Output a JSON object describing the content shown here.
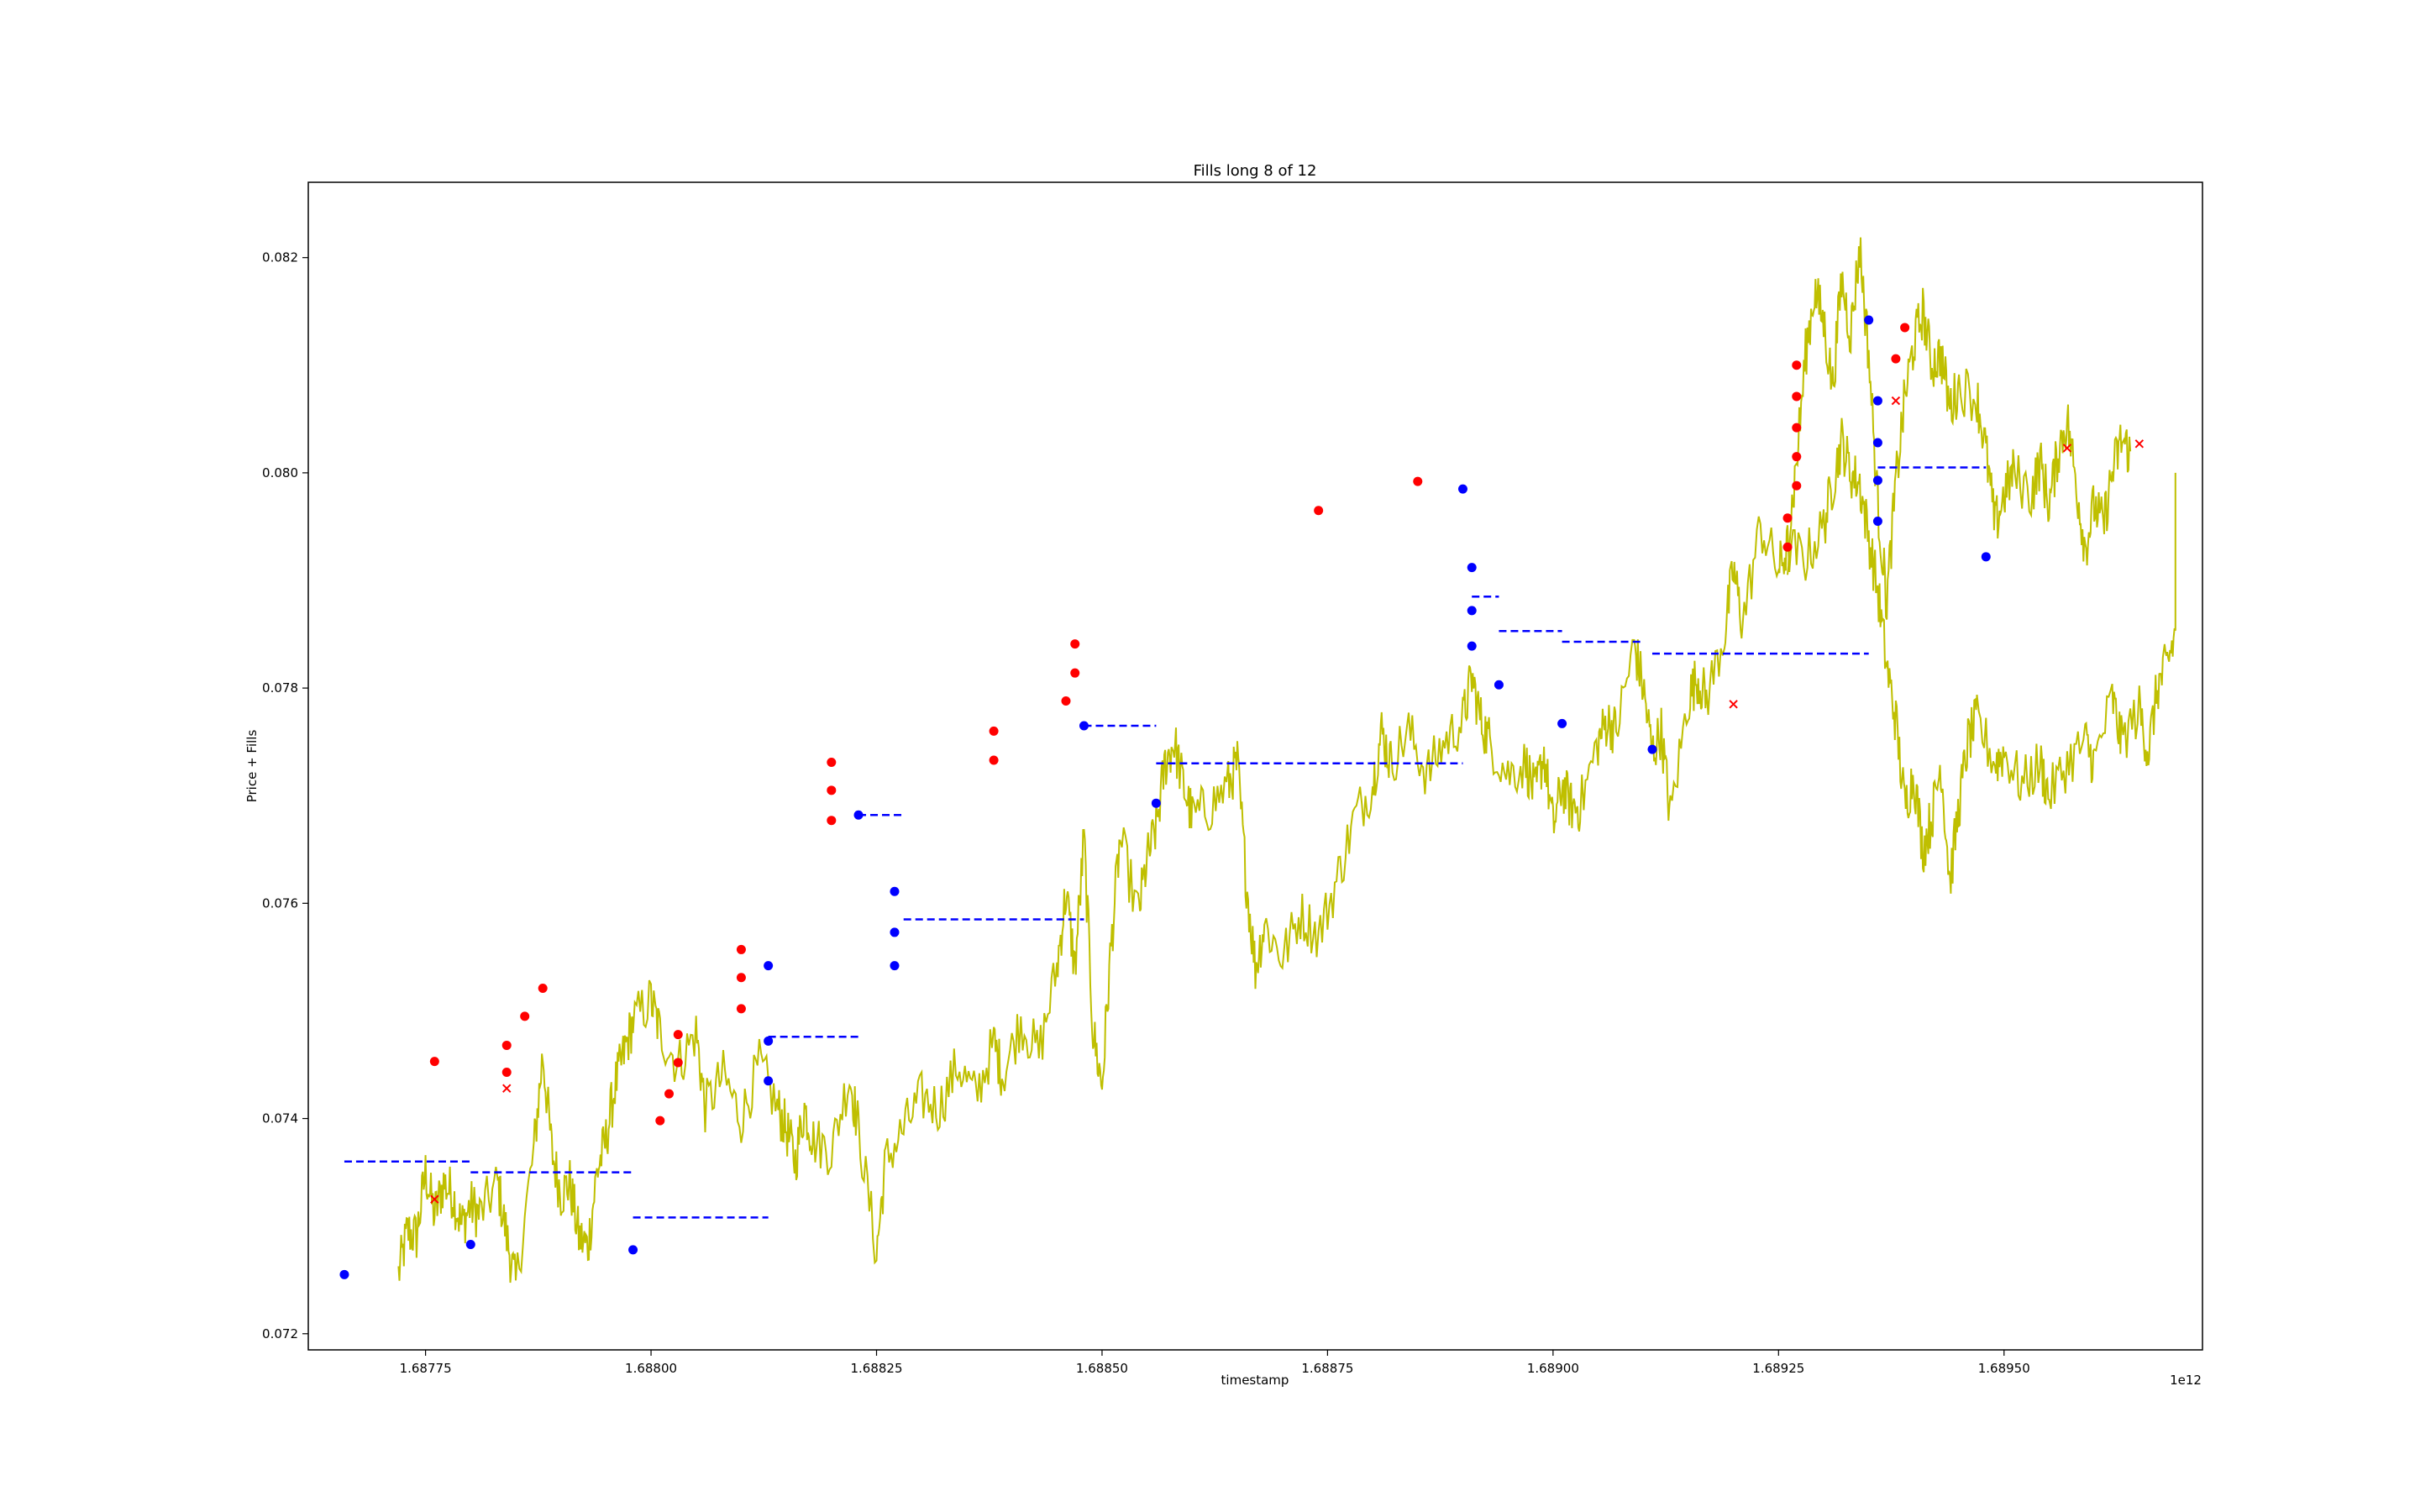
{
  "chart_data": {
    "type": "line",
    "title": "Fills long 8 of 12",
    "xlabel": "timestamp",
    "ylabel": "Price + Fills",
    "x_offset_label": "1e12",
    "xlim": [
      1.68762,
      1.68972
    ],
    "ylim": [
      0.07185,
      0.0827
    ],
    "x_ticks": [
      1.68775,
      1.688,
      1.68825,
      1.6885,
      1.68875,
      1.689,
      1.68925,
      1.6895
    ],
    "x_tick_labels": [
      "1.68775",
      "1.68800",
      "1.68825",
      "1.68850",
      "1.68875",
      "1.68900",
      "1.68925",
      "1.68950"
    ],
    "y_ticks": [
      0.072,
      0.074,
      0.076,
      0.078,
      0.08,
      0.082
    ],
    "y_tick_labels": [
      "0.072",
      "0.074",
      "0.076",
      "0.078",
      "0.080",
      "0.082"
    ],
    "grid": false,
    "legend": "none",
    "colors": {
      "price": "#bfbf00",
      "entry_fill": "#0000ff",
      "close_fill": "#ff0000",
      "position_price": "#0000ff",
      "stop_marker": "#ff0000",
      "mixed_fill": "#800080"
    },
    "price_series": {
      "name": "price",
      "points": [
        [
          1.68772,
          0.07255
        ],
        [
          1.68773,
          0.07295
        ],
        [
          1.68774,
          0.0729
        ],
        [
          1.68775,
          0.0735
        ],
        [
          1.68776,
          0.0731
        ],
        [
          1.68777,
          0.0734
        ],
        [
          1.68778,
          0.0733
        ],
        [
          1.68779,
          0.073
        ],
        [
          1.6878,
          0.0732
        ],
        [
          1.68781,
          0.0731
        ],
        [
          1.68783,
          0.0734
        ],
        [
          1.68784,
          0.0729
        ],
        [
          1.68785,
          0.07245
        ],
        [
          1.68787,
          0.0737
        ],
        [
          1.68788,
          0.0746
        ],
        [
          1.68789,
          0.0737
        ],
        [
          1.6879,
          0.0733
        ],
        [
          1.68791,
          0.0734
        ],
        [
          1.68792,
          0.0729
        ],
        [
          1.68793,
          0.0728
        ],
        [
          1.68794,
          0.0735
        ],
        [
          1.68795,
          0.0738
        ],
        [
          1.68796,
          0.0743
        ],
        [
          1.68797,
          0.0746
        ],
        [
          1.68798,
          0.0749
        ],
        [
          1.688,
          0.0751
        ],
        [
          1.68801,
          0.0748
        ],
        [
          1.68803,
          0.0745
        ],
        [
          1.68805,
          0.0748
        ],
        [
          1.68806,
          0.0741
        ],
        [
          1.68808,
          0.0744
        ],
        [
          1.6881,
          0.074
        ],
        [
          1.68812,
          0.0745
        ],
        [
          1.68814,
          0.0741
        ],
        [
          1.68815,
          0.0739
        ],
        [
          1.68816,
          0.0736
        ],
        [
          1.68817,
          0.0741
        ],
        [
          1.68818,
          0.0738
        ],
        [
          1.6882,
          0.0737
        ],
        [
          1.68822,
          0.0744
        ],
        [
          1.68823,
          0.0739
        ],
        [
          1.68825,
          0.07275
        ],
        [
          1.68826,
          0.0736
        ],
        [
          1.68828,
          0.0739
        ],
        [
          1.6883,
          0.0742
        ],
        [
          1.68832,
          0.0741
        ],
        [
          1.68834,
          0.0745
        ],
        [
          1.68836,
          0.0742
        ],
        [
          1.68838,
          0.0747
        ],
        [
          1.68839,
          0.0744
        ],
        [
          1.68841,
          0.0749
        ],
        [
          1.68843,
          0.0746
        ],
        [
          1.68845,
          0.0754
        ],
        [
          1.68846,
          0.0761
        ],
        [
          1.68847,
          0.0754
        ],
        [
          1.68848,
          0.0766
        ],
        [
          1.68849,
          0.0748
        ],
        [
          1.6885,
          0.0743
        ],
        [
          1.68851,
          0.0756
        ],
        [
          1.68852,
          0.0766
        ],
        [
          1.68854,
          0.0759
        ],
        [
          1.68855,
          0.0764
        ],
        [
          1.68856,
          0.0767
        ],
        [
          1.68857,
          0.0773
        ],
        [
          1.68858,
          0.0775
        ],
        [
          1.68859,
          0.0771
        ],
        [
          1.6886,
          0.0768
        ],
        [
          1.68862,
          0.0769
        ],
        [
          1.68864,
          0.0771
        ],
        [
          1.68865,
          0.0773
        ],
        [
          1.68866,
          0.0762
        ],
        [
          1.68867,
          0.0754
        ],
        [
          1.68868,
          0.0758
        ],
        [
          1.6887,
          0.0755
        ],
        [
          1.68872,
          0.0759
        ],
        [
          1.68874,
          0.0757
        ],
        [
          1.68876,
          0.0762
        ],
        [
          1.68878,
          0.0768
        ],
        [
          1.6888,
          0.0771
        ],
        [
          1.68881,
          0.0776
        ],
        [
          1.68882,
          0.0773
        ],
        [
          1.68884,
          0.0776
        ],
        [
          1.68886,
          0.0772
        ],
        [
          1.68888,
          0.0775
        ],
        [
          1.6889,
          0.0777
        ],
        [
          1.68891,
          0.0781
        ],
        [
          1.68892,
          0.0777
        ],
        [
          1.68893,
          0.0775
        ],
        [
          1.68895,
          0.0772
        ],
        [
          1.68897,
          0.0773
        ],
        [
          1.68898,
          0.077
        ],
        [
          1.68899,
          0.0774
        ],
        [
          1.689,
          0.0767
        ],
        [
          1.68901,
          0.0771
        ],
        [
          1.68902,
          0.0769
        ],
        [
          1.68903,
          0.0769
        ],
        [
          1.68905,
          0.0775
        ],
        [
          1.68906,
          0.0777
        ],
        [
          1.68907,
          0.0776
        ],
        [
          1.68909,
          0.0784
        ],
        [
          1.6891,
          0.078
        ],
        [
          1.68911,
          0.0774
        ],
        [
          1.68912,
          0.0776
        ],
        [
          1.68913,
          0.0768
        ],
        [
          1.68915,
          0.0779
        ],
        [
          1.68916,
          0.0781
        ],
        [
          1.68917,
          0.0779
        ],
        [
          1.68919,
          0.0785
        ],
        [
          1.6892,
          0.0791
        ],
        [
          1.68921,
          0.0786
        ],
        [
          1.68923,
          0.0795
        ],
        [
          1.68925,
          0.0791
        ],
        [
          1.68926,
          0.0793
        ],
        [
          1.68928,
          0.0792
        ],
        [
          1.6893,
          0.0795
        ],
        [
          1.68931,
          0.0799
        ],
        [
          1.68932,
          0.0803
        ],
        [
          1.68933,
          0.08
        ],
        [
          1.68934,
          0.0799
        ],
        [
          1.68935,
          0.0794
        ],
        [
          1.68936,
          0.0789
        ],
        [
          1.68937,
          0.0782
        ],
        [
          1.68938,
          0.0777
        ],
        [
          1.68939,
          0.0769
        ],
        [
          1.6894,
          0.0772
        ],
        [
          1.68941,
          0.0765
        ],
        [
          1.68942,
          0.0768
        ],
        [
          1.68943,
          0.0773
        ],
        [
          1.68944,
          0.0762
        ],
        [
          1.68945,
          0.0769
        ],
        [
          1.68946,
          0.0775
        ],
        [
          1.68947,
          0.0777
        ],
        [
          1.68949,
          0.0773
        ],
        [
          1.6895,
          0.0774
        ],
        [
          1.68952,
          0.0771
        ],
        [
          1.68954,
          0.0773
        ],
        [
          1.68955,
          0.077
        ],
        [
          1.68957,
          0.0773
        ],
        [
          1.68959,
          0.0775
        ],
        [
          1.6896,
          0.0773
        ],
        [
          1.68962,
          0.0779
        ],
        [
          1.68963,
          0.0775
        ],
        [
          1.68965,
          0.0778
        ],
        [
          1.68966,
          0.0774
        ],
        [
          1.68967,
          0.078
        ],
        [
          1.68968,
          0.0782
        ],
        [
          1.68969,
          0.0785
        ],
        [
          1.68969,
          0.08
        ]
      ]
    },
    "price_series_late": {
      "name": "price",
      "points": [
        [
          1.68926,
          0.0793
        ],
        [
          1.68927,
          0.0801
        ],
        [
          1.68928,
          0.0811
        ],
        [
          1.68929,
          0.0817
        ],
        [
          1.6893,
          0.0814
        ],
        [
          1.68931,
          0.0808
        ],
        [
          1.68932,
          0.0818
        ],
        [
          1.68933,
          0.0813
        ],
        [
          1.68934,
          0.0821
        ],
        [
          1.68935,
          0.0811
        ],
        [
          1.68936,
          0.0797
        ],
        [
          1.68937,
          0.0788
        ],
        [
          1.68938,
          0.0799
        ],
        [
          1.68939,
          0.0807
        ],
        [
          1.6894,
          0.0812
        ],
        [
          1.68941,
          0.0815
        ],
        [
          1.68942,
          0.081
        ],
        [
          1.68943,
          0.0811
        ],
        [
          1.68944,
          0.0806
        ],
        [
          1.68945,
          0.0808
        ],
        [
          1.68947,
          0.0807
        ],
        [
          1.68948,
          0.0802
        ],
        [
          1.68949,
          0.0795
        ],
        [
          1.6895,
          0.0798
        ],
        [
          1.68951,
          0.08
        ],
        [
          1.68953,
          0.0798
        ],
        [
          1.68954,
          0.0801
        ],
        [
          1.68955,
          0.0797
        ],
        [
          1.68956,
          0.0802
        ],
        [
          1.68957,
          0.0805
        ],
        [
          1.68958,
          0.0799
        ],
        [
          1.68959,
          0.0793
        ],
        [
          1.6896,
          0.0797
        ],
        [
          1.68961,
          0.0795
        ],
        [
          1.68962,
          0.08
        ],
        [
          1.68963,
          0.0803
        ],
        [
          1.68964,
          0.0802
        ]
      ]
    },
    "entry_fills": [
      [
        1.68766,
        0.07255
      ],
      [
        1.6878,
        0.07283
      ],
      [
        1.68798,
        0.07278
      ],
      [
        1.68813,
        0.07435
      ],
      [
        1.68813,
        0.07472
      ],
      [
        1.68813,
        0.07542
      ],
      [
        1.68823,
        0.07682
      ],
      [
        1.68827,
        0.07542
      ],
      [
        1.68827,
        0.07573
      ],
      [
        1.68827,
        0.07611
      ],
      [
        1.68848,
        0.07765
      ],
      [
        1.68856,
        0.07693
      ],
      [
        1.6889,
        0.07985
      ],
      [
        1.68891,
        0.07912
      ],
      [
        1.68891,
        0.07872
      ],
      [
        1.68891,
        0.07839
      ],
      [
        1.68894,
        0.07803
      ],
      [
        1.68901,
        0.07767
      ],
      [
        1.68911,
        0.07743
      ],
      [
        1.68935,
        0.08142
      ],
      [
        1.68936,
        0.08067
      ],
      [
        1.68936,
        0.08028
      ],
      [
        1.68936,
        0.07993
      ],
      [
        1.68936,
        0.07955
      ],
      [
        1.68948,
        0.07922
      ]
    ],
    "close_fills": [
      [
        1.68776,
        0.07453
      ],
      [
        1.68784,
        0.07443
      ],
      [
        1.68784,
        0.07468
      ],
      [
        1.68786,
        0.07495
      ],
      [
        1.68788,
        0.07521
      ],
      [
        1.68801,
        0.07398
      ],
      [
        1.68802,
        0.07423
      ],
      [
        1.68803,
        0.07452
      ],
      [
        1.68803,
        0.07478
      ],
      [
        1.6881,
        0.07502
      ],
      [
        1.6881,
        0.07531
      ],
      [
        1.6881,
        0.07557
      ],
      [
        1.6882,
        0.07677
      ],
      [
        1.6882,
        0.07705
      ],
      [
        1.6882,
        0.07731
      ],
      [
        1.68838,
        0.07733
      ],
      [
        1.68838,
        0.0776
      ],
      [
        1.68846,
        0.07788
      ],
      [
        1.68847,
        0.07814
      ],
      [
        1.68847,
        0.07841
      ],
      [
        1.68874,
        0.07965
      ],
      [
        1.68885,
        0.07992
      ],
      [
        1.68926,
        0.07931
      ],
      [
        1.68926,
        0.07958
      ],
      [
        1.68927,
        0.07988
      ],
      [
        1.68927,
        0.08015
      ],
      [
        1.68927,
        0.08042
      ],
      [
        1.68927,
        0.08071
      ],
      [
        1.68927,
        0.081
      ],
      [
        1.68938,
        0.08106
      ],
      [
        1.68939,
        0.08135
      ]
    ],
    "stop_markers": [
      [
        1.68776,
        0.07325
      ],
      [
        1.68784,
        0.07428
      ],
      [
        1.6892,
        0.07785
      ],
      [
        1.68938,
        0.08067
      ],
      [
        1.68957,
        0.08023
      ],
      [
        1.68965,
        0.08027
      ]
    ],
    "position_price_segments": [
      {
        "x": [
          1.68766,
          1.6878
        ],
        "y": 0.0736
      },
      {
        "x": [
          1.6878,
          1.68798
        ],
        "y": 0.0735
      },
      {
        "x": [
          1.68798,
          1.68813
        ],
        "y": 0.07308
      },
      {
        "x": [
          1.68813,
          1.68823
        ],
        "y": 0.07476
      },
      {
        "x": [
          1.68823,
          1.68828
        ],
        "y": 0.07682
      },
      {
        "x": [
          1.68828,
          1.68848
        ],
        "y": 0.07585
      },
      {
        "x": [
          1.68848,
          1.68856
        ],
        "y": 0.07765
      },
      {
        "x": [
          1.68856,
          1.6889
        ],
        "y": 0.0773
      },
      {
        "x": [
          1.68891,
          1.68894
        ],
        "y": 0.07885
      },
      {
        "x": [
          1.68894,
          1.68901
        ],
        "y": 0.07853
      },
      {
        "x": [
          1.68901,
          1.6891
        ],
        "y": 0.07843
      },
      {
        "x": [
          1.68911,
          1.68935
        ],
        "y": 0.07832
      },
      {
        "x": [
          1.68936,
          1.68948
        ],
        "y": 0.08005
      }
    ]
  }
}
